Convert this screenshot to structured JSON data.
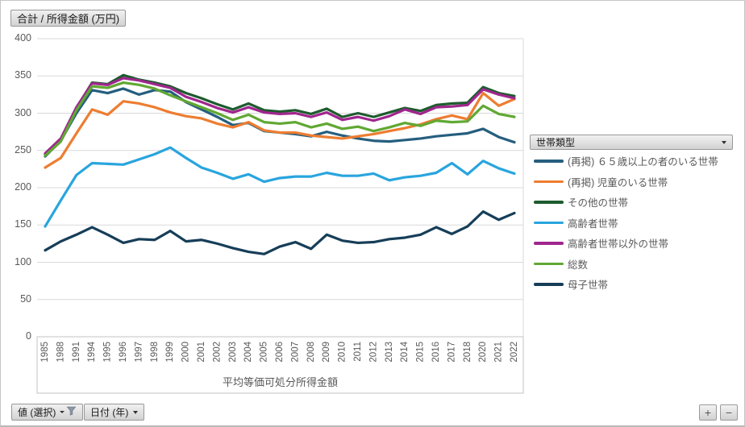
{
  "pivot_buttons": {
    "value_field": "合計 / 所得金額 (万円)",
    "values_filter": "値 (選択)",
    "axis_field": "日付 (年)",
    "legend_field": "世帯類型"
  },
  "zoom_controls": {
    "zoom_in": "+",
    "zoom_out": "−"
  },
  "chart_data": {
    "type": "line",
    "title": "合計 / 所得金額 (万円)",
    "xlabel": "平均等価可処分所得金額",
    "ylabel": "",
    "ylim": [
      0,
      400
    ],
    "yticks": [
      400,
      350,
      300,
      250,
      200,
      150,
      100,
      50,
      0
    ],
    "grid": true,
    "legend_title": "世帯類型",
    "legend_position": "right",
    "categories": [
      "1985",
      "1988",
      "1991",
      "1994",
      "1995",
      "1996",
      "1997",
      "1998",
      "1999",
      "2000",
      "2001",
      "2002",
      "2003",
      "2004",
      "2005",
      "2006",
      "2007",
      "2008",
      "2009",
      "2010",
      "2011",
      "2012",
      "2013",
      "2014",
      "2015",
      "2016",
      "2017",
      "2018",
      "2020",
      "2021",
      "2022"
    ],
    "series": [
      {
        "name": "(再掲) ６５歳以上の者のいる世帯",
        "color": "#255E7E",
        "values": [
          242,
          263,
          300,
          331,
          327,
          333,
          325,
          331,
          329,
          315,
          305,
          295,
          284,
          287,
          276,
          274,
          272,
          269,
          275,
          270,
          266,
          263,
          262,
          264,
          266,
          269,
          271,
          273,
          279,
          268,
          261
        ]
      },
      {
        "name": "(再掲) 児童のいる世帯",
        "color": "#ED7D31",
        "values": [
          227,
          240,
          273,
          305,
          298,
          316,
          313,
          308,
          301,
          296,
          293,
          286,
          281,
          288,
          277,
          274,
          274,
          270,
          268,
          266,
          269,
          272,
          276,
          280,
          285,
          292,
          297,
          292,
          327,
          310,
          319
        ]
      },
      {
        "name": "その他の世帯",
        "color": "#1E5B2E",
        "values": [
          245,
          265,
          307,
          341,
          339,
          351,
          345,
          341,
          336,
          327,
          320,
          312,
          305,
          313,
          304,
          302,
          304,
          299,
          306,
          295,
          300,
          295,
          301,
          307,
          303,
          311,
          313,
          314,
          335,
          327,
          323
        ]
      },
      {
        "name": "高齢者世帯",
        "color": "#29A5DE",
        "values": [
          148,
          183,
          217,
          233,
          232,
          231,
          238,
          245,
          254,
          240,
          227,
          220,
          212,
          218,
          208,
          213,
          215,
          215,
          220,
          216,
          216,
          219,
          210,
          214,
          216,
          220,
          233,
          218,
          236,
          226,
          219
        ]
      },
      {
        "name": "高齢者世帯以外の世帯",
        "color": "#A0268E",
        "values": [
          246,
          266,
          308,
          340,
          338,
          347,
          344,
          339,
          334,
          322,
          315,
          307,
          301,
          308,
          301,
          299,
          300,
          295,
          301,
          291,
          295,
          290,
          296,
          305,
          299,
          308,
          309,
          311,
          332,
          325,
          320
        ]
      },
      {
        "name": "総数",
        "color": "#61A833",
        "values": [
          243,
          262,
          304,
          336,
          334,
          341,
          338,
          333,
          324,
          316,
          308,
          300,
          291,
          298,
          288,
          286,
          288,
          281,
          286,
          279,
          282,
          276,
          281,
          287,
          283,
          290,
          288,
          289,
          310,
          299,
          295
        ]
      },
      {
        "name": "母子世帯",
        "color": "#163E58",
        "values": [
          116,
          128,
          137,
          147,
          137,
          126,
          131,
          130,
          142,
          128,
          130,
          125,
          119,
          114,
          111,
          121,
          127,
          118,
          137,
          129,
          126,
          127,
          131,
          133,
          137,
          147,
          138,
          148,
          168,
          157,
          166
        ]
      }
    ]
  }
}
